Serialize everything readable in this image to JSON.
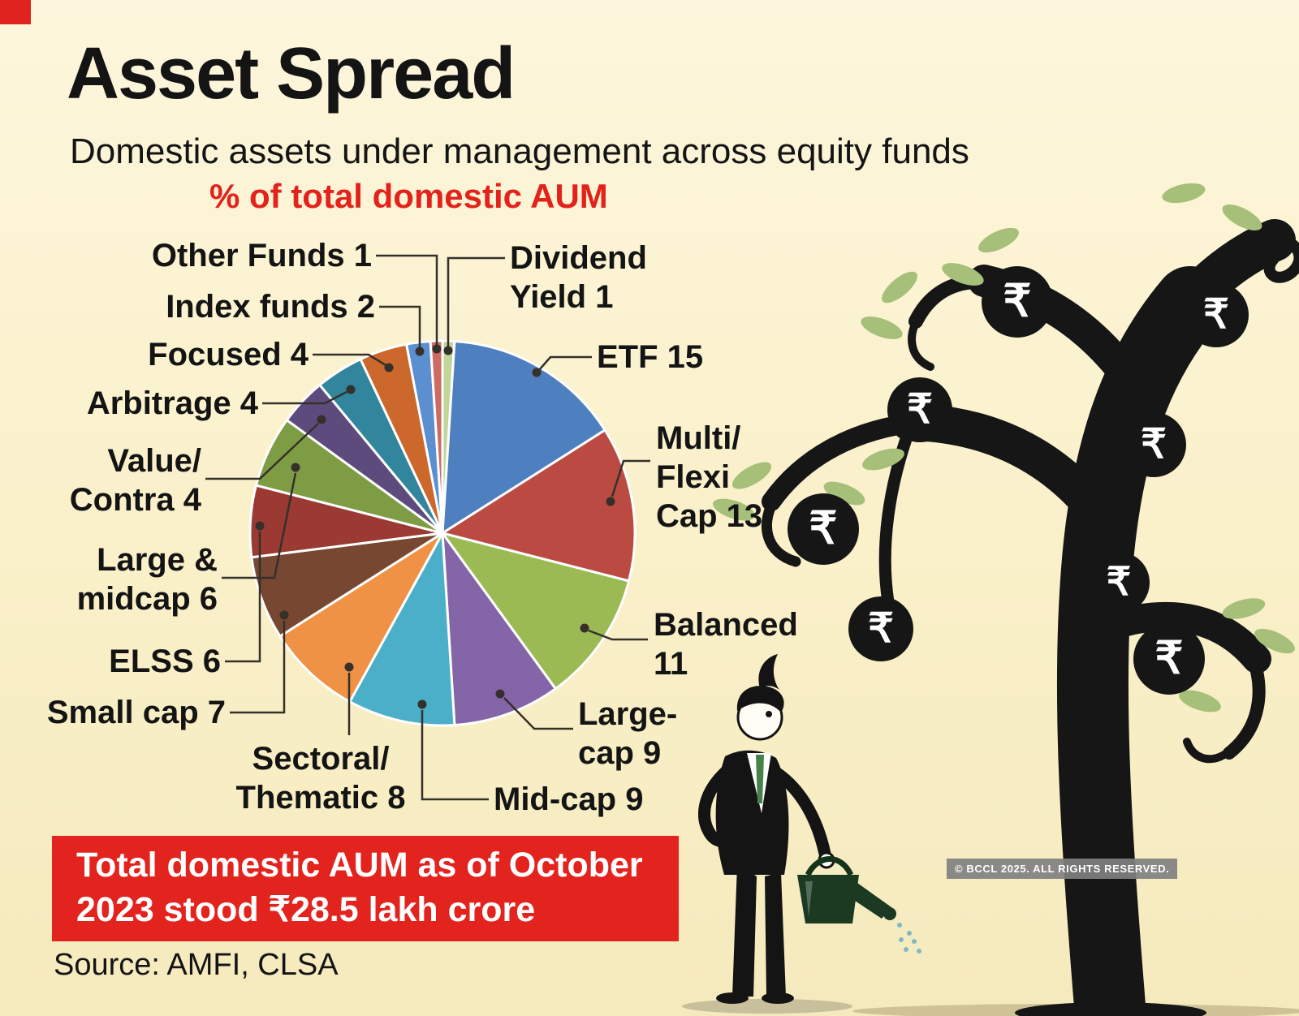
{
  "page": {
    "title": "Asset Spread",
    "subtitle": "Domestic assets under management across equity funds",
    "banner": {
      "line1": "Total domestic AUM as of October",
      "line2": "2023 stood ₹28.5 lakh crore"
    },
    "source": "Source: AMFI, CLSA",
    "watermark": "© BCCL 2025. ALL RIGHTS RESERVED.",
    "colors": {
      "background": "#faf0c9",
      "accent_red": "#e3231e",
      "text": "#141414",
      "leaf_green": "#a6bf79",
      "coin_black": "#161616"
    },
    "illustration": {
      "rupee_symbol": "₹",
      "description": "black money tree with rupee coins and a gardener watering it"
    }
  },
  "chart_data": {
    "type": "pie",
    "title": "% of total domestic AUM",
    "note": "Total domestic AUM as of October 2023 stood ₹28.5 lakh crore",
    "source": "AMFI, CLSA",
    "legend_position": "callout-labels",
    "total_percent": 100,
    "slices": [
      {
        "label": "Dividend Yield",
        "value": 1,
        "color": "#c2d69a",
        "display_lines": [
          "Dividend",
          "Yield 1"
        ]
      },
      {
        "label": "ETF",
        "value": 15,
        "color": "#4e7fbe",
        "display_lines": [
          "ETF 15"
        ]
      },
      {
        "label": "Multi/Flexi Cap",
        "value": 13,
        "color": "#bb4a42",
        "display_lines": [
          "Multi/",
          "Flexi",
          "Cap 13"
        ]
      },
      {
        "label": "Balanced",
        "value": 11,
        "color": "#9cba54",
        "display_lines": [
          "Balanced",
          "11"
        ]
      },
      {
        "label": "Large-cap",
        "value": 9,
        "color": "#8465a8",
        "display_lines": [
          "Large-",
          "cap 9"
        ]
      },
      {
        "label": "Mid-cap",
        "value": 9,
        "color": "#4bafc9",
        "display_lines": [
          "Mid-cap 9"
        ]
      },
      {
        "label": "Sectoral/Thematic",
        "value": 8,
        "color": "#ef9245",
        "display_lines": [
          "Sectoral/",
          "Thematic 8"
        ]
      },
      {
        "label": "Small cap",
        "value": 7,
        "color": "#774731",
        "display_lines": [
          "Small cap 7"
        ]
      },
      {
        "label": "ELSS",
        "value": 6,
        "color": "#9a3a33",
        "display_lines": [
          "ELSS 6"
        ]
      },
      {
        "label": "Large & midcap",
        "value": 6,
        "color": "#7e9c44",
        "display_lines": [
          "Large &",
          "midcap 6"
        ]
      },
      {
        "label": "Value/Contra",
        "value": 4,
        "color": "#5e4b7e",
        "display_lines": [
          "Value/",
          "Contra 4"
        ]
      },
      {
        "label": "Arbitrage",
        "value": 4,
        "color": "#31859d",
        "display_lines": [
          "Arbitrage 4"
        ]
      },
      {
        "label": "Focused",
        "value": 4,
        "color": "#cc682c",
        "display_lines": [
          "Focused 4"
        ]
      },
      {
        "label": "Index funds",
        "value": 2,
        "color": "#5b8fd0",
        "display_lines": [
          "Index funds 2"
        ]
      },
      {
        "label": "Other Funds",
        "value": 1,
        "color": "#cd6a62",
        "display_lines": [
          "Other Funds 1"
        ]
      }
    ]
  }
}
